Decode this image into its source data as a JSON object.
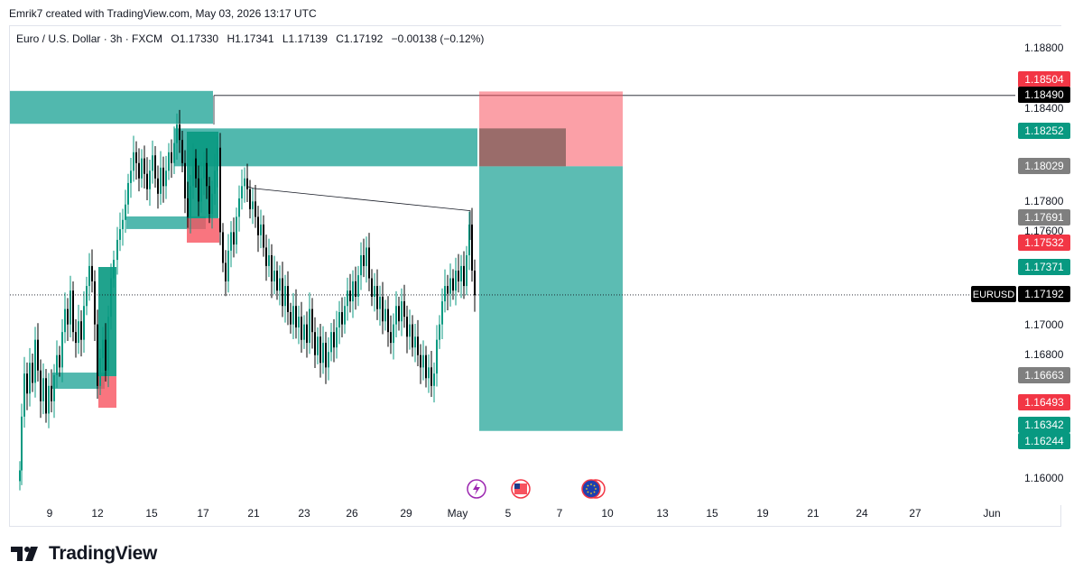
{
  "header": {
    "attribution": "Emrik7 created with TradingView.com, May 03, 2026 13:17 UTC"
  },
  "legend": {
    "symbol": "Euro / U.S. Dollar · 3h · FXCM",
    "open": "O1.17330",
    "high": "H1.17341",
    "low": "L1.17139",
    "close": "C1.17192",
    "change": "−0.00138 (−0.12%)"
  },
  "brand": {
    "name": "TradingView"
  },
  "chart_data": {
    "type": "candlestick",
    "symbol": "EURUSD",
    "timeframe": "3h",
    "ylim": [
      1.159,
      1.1895
    ],
    "y_ticks": [
      "1.18800",
      "1.18400",
      "1.17800",
      "1.17600",
      "1.17000",
      "1.16800",
      "1.16000"
    ],
    "x_ticks": [
      "9",
      "12",
      "15",
      "17",
      "21",
      "23",
      "26",
      "29",
      "May",
      "5",
      "7",
      "10",
      "13",
      "15",
      "19",
      "21",
      "24",
      "27",
      "Jun"
    ],
    "price_labels": [
      {
        "value": "1.18504",
        "color": "#f23645",
        "text_color": "#ffffff"
      },
      {
        "value": "1.18490",
        "color": "#000000",
        "text_color": "#ffffff"
      },
      {
        "value": "1.18252",
        "color": "#089981",
        "text_color": "#ffffff"
      },
      {
        "value": "1.18029",
        "color": "#7f7f7f",
        "text_color": "#ffffff"
      },
      {
        "value": "1.17691",
        "color": "#7f7f7f",
        "text_color": "#ffffff"
      },
      {
        "value": "1.17532",
        "color": "#f23645",
        "text_color": "#ffffff"
      },
      {
        "value": "1.17371",
        "color": "#089981",
        "text_color": "#ffffff"
      },
      {
        "value": "1.17192",
        "color": "#000000",
        "text_color": "#ffffff",
        "tag": "EURUSD"
      },
      {
        "value": "1.16663",
        "color": "#7f7f7f",
        "text_color": "#ffffff"
      },
      {
        "value": "1.16493",
        "color": "#f23645",
        "text_color": "#ffffff"
      },
      {
        "value": "1.16342",
        "color": "#089981",
        "text_color": "#ffffff"
      },
      {
        "value": "1.16244",
        "color": "#089981",
        "text_color": "#ffffff"
      }
    ],
    "last_price": 1.17192,
    "horizontal_line": 1.1849,
    "position": {
      "entry": 1.18029,
      "stop": 1.18504,
      "target": 1.16342
    },
    "zones": [
      {
        "kind": "supply",
        "low": 1.18329,
        "high": 1.1849
      },
      {
        "kind": "demand",
        "low": 1.18029,
        "high": 1.18252
      },
      {
        "kind": "demand",
        "low": 1.17532,
        "high": 1.17691
      },
      {
        "kind": "demand",
        "low": 1.16493,
        "high": 1.16663
      }
    ],
    "colors": {
      "up": "#089981",
      "down": "#000000",
      "zone_green": "#26a69a",
      "zone_red": "#f7525f",
      "profit": "#26a69a",
      "loss": "#f7525f"
    },
    "event_icons": [
      "lightning-icon",
      "us-flag-icon",
      "eu-flag-icon"
    ]
  }
}
